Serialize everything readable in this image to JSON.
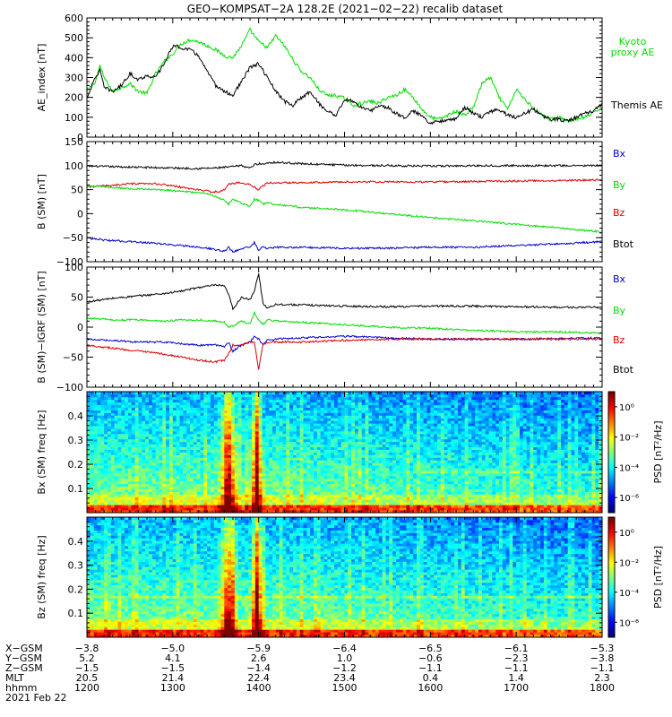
{
  "title": "GEO−KOMPSAT−2A 128.2E (2021−02−22) recalib dataset",
  "chart_data": [
    {
      "type": "line",
      "ylabel": "AE_index [nT]",
      "ylim": [
        0,
        600
      ],
      "yticks": [
        0,
        100,
        200,
        300,
        400,
        500,
        600
      ],
      "xlim": [
        1200,
        1800
      ],
      "series": [
        {
          "name": "Kyoto proxy AE",
          "color": "#00dd00",
          "x": [
            1200,
            1210,
            1215,
            1220,
            1230,
            1240,
            1250,
            1260,
            1270,
            1280,
            1290,
            1300,
            1310,
            1320,
            1330,
            1340,
            1350,
            1360,
            1370,
            1380,
            1390,
            1400,
            1410,
            1420,
            1430,
            1440,
            1450,
            1460,
            1470,
            1480,
            1490,
            1500,
            1510,
            1520,
            1530,
            1540,
            1550,
            1560,
            1570,
            1580,
            1590,
            1600,
            1610,
            1620,
            1630,
            1640,
            1650,
            1660,
            1670,
            1680,
            1690,
            1700,
            1710,
            1720,
            1730,
            1740,
            1750,
            1760,
            1770,
            1780,
            1790,
            1800
          ],
          "values": [
            230,
            280,
            360,
            300,
            230,
            250,
            270,
            230,
            220,
            320,
            380,
            420,
            470,
            490,
            480,
            460,
            440,
            410,
            400,
            460,
            540,
            480,
            450,
            510,
            460,
            390,
            330,
            300,
            240,
            210,
            210,
            195,
            160,
            170,
            180,
            170,
            200,
            210,
            240,
            200,
            140,
            100,
            90,
            110,
            130,
            110,
            150,
            270,
            300,
            200,
            140,
            240,
            190,
            150,
            110,
            90,
            100,
            80,
            90,
            100,
            120,
            150
          ]
        },
        {
          "name": "Themis AE",
          "color": "#000000",
          "x": [
            1200,
            1210,
            1215,
            1220,
            1230,
            1240,
            1250,
            1260,
            1270,
            1280,
            1290,
            1300,
            1310,
            1320,
            1330,
            1340,
            1350,
            1360,
            1370,
            1380,
            1390,
            1400,
            1410,
            1420,
            1430,
            1440,
            1450,
            1460,
            1470,
            1480,
            1490,
            1500,
            1510,
            1520,
            1530,
            1540,
            1550,
            1560,
            1570,
            1580,
            1590,
            1600,
            1610,
            1620,
            1630,
            1640,
            1650,
            1660,
            1670,
            1680,
            1690,
            1700,
            1710,
            1720,
            1730,
            1740,
            1750,
            1760,
            1770,
            1780,
            1790,
            1800
          ],
          "values": [
            200,
            300,
            340,
            250,
            230,
            260,
            320,
            290,
            310,
            300,
            370,
            460,
            450,
            440,
            410,
            330,
            260,
            230,
            210,
            280,
            350,
            370,
            300,
            230,
            180,
            160,
            200,
            230,
            170,
            130,
            110,
            190,
            180,
            150,
            130,
            160,
            150,
            120,
            100,
            130,
            110,
            70,
            80,
            90,
            90,
            150,
            120,
            100,
            130,
            140,
            110,
            100,
            120,
            140,
            110,
            90,
            90,
            80,
            100,
            120,
            130,
            170
          ]
        }
      ]
    },
    {
      "type": "line",
      "ylabel": "B (SM) [nT]",
      "ylim": [
        -100,
        150
      ],
      "yticks": [
        -100,
        -50,
        0,
        50,
        100,
        150
      ],
      "xlim": [
        1200,
        1800
      ],
      "series": [
        {
          "name": "Btot",
          "color": "#000000",
          "x": [
            1200,
            1250,
            1300,
            1330,
            1350,
            1365,
            1380,
            1390,
            1395,
            1400,
            1405,
            1410,
            1420,
            1450,
            1500,
            1550,
            1600,
            1650,
            1700,
            1750,
            1800
          ],
          "values": [
            99,
            97,
            95,
            94,
            95,
            97,
            100,
            95,
            102,
            104,
            103,
            106,
            107,
            104,
            101,
            100,
            99,
            100,
            100,
            100,
            100
          ]
        },
        {
          "name": "Bz",
          "color": "#dd0000",
          "x": [
            1200,
            1220,
            1250,
            1280,
            1300,
            1320,
            1340,
            1355,
            1360,
            1365,
            1370,
            1380,
            1390,
            1395,
            1400,
            1405,
            1410,
            1420,
            1450,
            1500,
            1550,
            1600,
            1650,
            1700,
            1750,
            1800
          ],
          "values": [
            55,
            58,
            62,
            62,
            58,
            52,
            47,
            45,
            50,
            62,
            63,
            65,
            60,
            55,
            50,
            58,
            64,
            64,
            65,
            66,
            66,
            66,
            67,
            68,
            69,
            70
          ]
        },
        {
          "name": "By",
          "color": "#00dd00",
          "x": [
            1200,
            1220,
            1250,
            1280,
            1300,
            1320,
            1340,
            1350,
            1360,
            1365,
            1370,
            1380,
            1390,
            1395,
            1400,
            1405,
            1410,
            1420,
            1450,
            1500,
            1550,
            1600,
            1650,
            1700,
            1750,
            1800
          ],
          "values": [
            58,
            56,
            52,
            50,
            48,
            45,
            42,
            35,
            28,
            20,
            30,
            22,
            15,
            30,
            28,
            20,
            22,
            20,
            13,
            8,
            0,
            -8,
            -15,
            -22,
            -30,
            -38
          ]
        },
        {
          "name": "Bx",
          "color": "#0000cc",
          "x": [
            1200,
            1220,
            1250,
            1280,
            1300,
            1320,
            1340,
            1350,
            1360,
            1365,
            1370,
            1380,
            1390,
            1395,
            1400,
            1405,
            1410,
            1420,
            1450,
            1500,
            1550,
            1600,
            1650,
            1700,
            1750,
            1800
          ],
          "values": [
            -50,
            -55,
            -58,
            -62,
            -65,
            -68,
            -72,
            -75,
            -78,
            -70,
            -80,
            -72,
            -70,
            -60,
            -75,
            -70,
            -72,
            -70,
            -70,
            -72,
            -72,
            -70,
            -70,
            -66,
            -63,
            -58
          ]
        }
      ]
    },
    {
      "type": "line",
      "ylabel": "B (SM)−IGRF (SM) [nT]",
      "ylim": [
        -100,
        100
      ],
      "yticks": [
        -100,
        -50,
        0,
        50,
        100
      ],
      "xlim": [
        1200,
        1800
      ],
      "series": [
        {
          "name": "Btot",
          "color": "#000000",
          "x": [
            1200,
            1230,
            1260,
            1290,
            1310,
            1330,
            1350,
            1360,
            1365,
            1370,
            1380,
            1390,
            1395,
            1400,
            1405,
            1410,
            1420,
            1450,
            1500,
            1550,
            1600,
            1650,
            1700,
            1750,
            1800
          ],
          "values": [
            42,
            48,
            52,
            56,
            60,
            66,
            70,
            68,
            55,
            30,
            50,
            45,
            60,
            90,
            40,
            32,
            38,
            37,
            35,
            34,
            35,
            35,
            34,
            33,
            33
          ]
        },
        {
          "name": "By",
          "color": "#00dd00",
          "x": [
            1200,
            1230,
            1260,
            1290,
            1310,
            1330,
            1350,
            1360,
            1365,
            1370,
            1380,
            1390,
            1395,
            1400,
            1405,
            1410,
            1420,
            1450,
            1500,
            1550,
            1600,
            1650,
            1700,
            1750,
            1800
          ],
          "values": [
            15,
            12,
            12,
            10,
            12,
            12,
            10,
            8,
            0,
            2,
            10,
            5,
            25,
            12,
            4,
            12,
            10,
            8,
            4,
            0,
            -2,
            -5,
            -8,
            -8,
            -10
          ]
        },
        {
          "name": "Bx",
          "color": "#0000cc",
          "x": [
            1200,
            1230,
            1260,
            1290,
            1310,
            1330,
            1350,
            1360,
            1365,
            1370,
            1380,
            1390,
            1395,
            1400,
            1405,
            1410,
            1420,
            1450,
            1500,
            1550,
            1600,
            1650,
            1700,
            1750,
            1800
          ],
          "values": [
            -20,
            -22,
            -25,
            -25,
            -28,
            -30,
            -30,
            -32,
            -25,
            -40,
            -30,
            -25,
            -15,
            -20,
            -30,
            -22,
            -20,
            -18,
            -15,
            -18,
            -20,
            -20,
            -20,
            -19,
            -18
          ]
        },
        {
          "name": "Bz",
          "color": "#dd0000",
          "x": [
            1200,
            1230,
            1260,
            1290,
            1310,
            1330,
            1350,
            1360,
            1365,
            1370,
            1380,
            1390,
            1395,
            1400,
            1405,
            1410,
            1420,
            1450,
            1500,
            1550,
            1600,
            1650,
            1700,
            1750,
            1800
          ],
          "values": [
            -30,
            -35,
            -40,
            -45,
            -50,
            -55,
            -58,
            -55,
            -45,
            -30,
            -30,
            -25,
            -25,
            -70,
            -30,
            -25,
            -25,
            -25,
            -22,
            -20,
            -20,
            -20,
            -20,
            -20,
            -20
          ]
        }
      ]
    },
    {
      "type": "heatmap",
      "ylabel": "Bx (SM) freq [Hz]",
      "ylim": [
        0,
        0.5
      ],
      "yticks": [
        0.1,
        0.2,
        0.3,
        0.4
      ],
      "xlim": [
        1200,
        1800
      ],
      "colorbar_label": "PSD [nT²/Hz]",
      "colorbar_ticks": [
        "10⁰",
        "10⁻²",
        "10⁻⁴",
        "10⁻⁶"
      ],
      "colorbar_exponents": [
        0,
        -2,
        -4,
        -6
      ]
    },
    {
      "type": "heatmap",
      "ylabel": "Bz (SM) freq [Hz]",
      "ylim": [
        0,
        0.5
      ],
      "yticks": [
        0.1,
        0.2,
        0.3,
        0.4
      ],
      "xlim": [
        1200,
        1800
      ],
      "colorbar_label": "PSD [nT²/Hz]",
      "colorbar_ticks": [
        "10⁰",
        "10⁻²",
        "10⁻⁴",
        "10⁻⁶"
      ],
      "colorbar_exponents": [
        0,
        -2,
        -4,
        -6
      ]
    }
  ],
  "ephemeris": {
    "x_values": [
      1200,
      1300,
      1400,
      1500,
      1600,
      1700,
      1800
    ],
    "rows": [
      {
        "label": "X−GSM",
        "values": [
          "−3.8",
          "−5.0",
          "−5.9",
          "−6.4",
          "−6.5",
          "−6.1",
          "−5.3"
        ]
      },
      {
        "label": "Y−GSM",
        "values": [
          "5.2",
          "4.1",
          "2.6",
          "1.0",
          "−0.6",
          "−2.3",
          "−3.8"
        ]
      },
      {
        "label": "Z−GSM",
        "values": [
          "−1.5",
          "−1.5",
          "−1.4",
          "−1.2",
          "−1.1",
          "−1.1",
          "−1.1"
        ]
      },
      {
        "label": "MLT",
        "values": [
          "20.5",
          "21.4",
          "22.4",
          "23.4",
          "0.4",
          "1.4",
          "2.3"
        ]
      },
      {
        "label": "hhmm",
        "values": [
          "1200",
          "1300",
          "1400",
          "1500",
          "1600",
          "1700",
          "1800"
        ]
      }
    ],
    "date": "2021 Feb 22"
  }
}
